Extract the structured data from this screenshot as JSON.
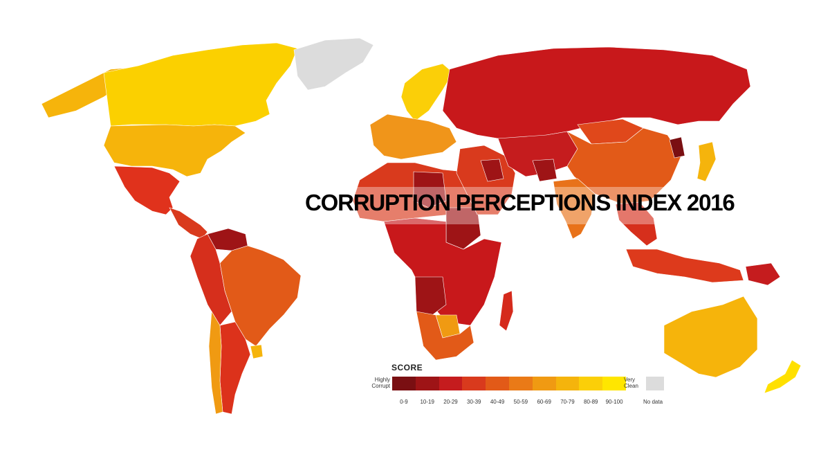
{
  "title": "CORRUPTION PERCEPTIONS INDEX 2016",
  "legend": {
    "heading": "SCORE",
    "low_label_line1": "Highly",
    "low_label_line2": "Corrupt",
    "high_label_line1": "Very",
    "high_label_line2": "Clean",
    "ranges": [
      "0-9",
      "10-19",
      "20-29",
      "30-39",
      "40-49",
      "50-59",
      "60-69",
      "70-79",
      "80-89",
      "90-100"
    ],
    "range_colors": [
      "#7a0f12",
      "#9e1416",
      "#c51c1e",
      "#d93a1d",
      "#e25a18",
      "#ea7a17",
      "#f09a12",
      "#f5b40c",
      "#fbcf08",
      "#ffe600"
    ],
    "no_data_label": "No data",
    "no_data_color": "#dcdcdc"
  },
  "regions": [
    {
      "name": "canada",
      "color": "#fbd000"
    },
    {
      "name": "usa",
      "color": "#f6b40b"
    },
    {
      "name": "greenland",
      "color": "#dcdcdc"
    },
    {
      "name": "alaska",
      "color": "#f6b40b"
    },
    {
      "name": "mexico",
      "color": "#e0321c"
    },
    {
      "name": "central-america",
      "color": "#d93a1d"
    },
    {
      "name": "venezuela",
      "color": "#9e1416"
    },
    {
      "name": "brazil",
      "color": "#e25a18"
    },
    {
      "name": "andes",
      "color": "#d62f1c"
    },
    {
      "name": "argentina",
      "color": "#dc321b"
    },
    {
      "name": "chile",
      "color": "#f09a12"
    },
    {
      "name": "uruguay",
      "color": "#f5b40c"
    },
    {
      "name": "western-europe",
      "color": "#f0951a"
    },
    {
      "name": "scandinavia",
      "color": "#fbcf08"
    },
    {
      "name": "russia",
      "color": "#c8181b"
    },
    {
      "name": "north-africa",
      "color": "#d93a1d"
    },
    {
      "name": "libya",
      "color": "#9e1416"
    },
    {
      "name": "sudan",
      "color": "#9e1416"
    },
    {
      "name": "central-africa",
      "color": "#c8181b"
    },
    {
      "name": "angola",
      "color": "#9e1416"
    },
    {
      "name": "southern-africa",
      "color": "#e25a18"
    },
    {
      "name": "botswana",
      "color": "#f09a12"
    },
    {
      "name": "madagascar",
      "color": "#d52a1c"
    },
    {
      "name": "middle-east",
      "color": "#d93a1d"
    },
    {
      "name": "iraq",
      "color": "#9e1416"
    },
    {
      "name": "central-asia",
      "color": "#c51c1e"
    },
    {
      "name": "afghanistan",
      "color": "#9e1416"
    },
    {
      "name": "china",
      "color": "#e25a18"
    },
    {
      "name": "india",
      "color": "#e8721a"
    },
    {
      "name": "mongolia",
      "color": "#e0481b"
    },
    {
      "name": "north-korea",
      "color": "#7a0f12"
    },
    {
      "name": "japan",
      "color": "#f5b40c"
    },
    {
      "name": "southeast-asia",
      "color": "#d62f1c"
    },
    {
      "name": "indonesia",
      "color": "#dd3a1c"
    },
    {
      "name": "papua-new-guinea",
      "color": "#c51c1e"
    },
    {
      "name": "australia",
      "color": "#f6b40b"
    },
    {
      "name": "new-zealand",
      "color": "#ffe000"
    }
  ]
}
